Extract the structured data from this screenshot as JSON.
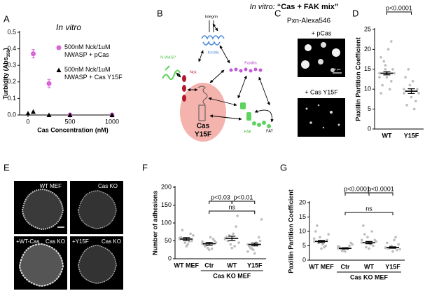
{
  "header": {
    "italic": "In vitro:",
    "bold": "“Cas + FAK mix”"
  },
  "panel_letters": [
    "A",
    "B",
    "C",
    "D",
    "E",
    "F",
    "G"
  ],
  "diagram": {
    "integrin": "Integrin",
    "kindlin": "Kindlin",
    "paxillin": "Paxillin",
    "nwasp": "N-WASP",
    "nck": "Nck",
    "cas": "Cas",
    "cas_mutant": "Y15F",
    "fak": "FAK",
    "fat": "FAT"
  },
  "micrographs": {
    "C": {
      "title": "Pxn-Alexa546",
      "top": "+ pCas",
      "bottom": "+ Cas Y15F",
      "scale": "5 µm"
    },
    "E": {
      "labels": [
        "WT MEF",
        "Cas KO",
        "+WT-Cas",
        "Cas KO",
        "+Y15F",
        "Cas KO"
      ]
    }
  },
  "chart_data": [
    {
      "type": "scatter",
      "title": "In vitro",
      "xlabel": "Cas Concentration (nM)",
      "ylabel": {
        "text": "Turbidity (Abs",
        "sub": "350",
        "end": ")"
      },
      "xlim": [
        -100,
        1000
      ],
      "xticks": [
        0,
        500,
        1000
      ],
      "ylim": [
        0,
        0.5
      ],
      "yticks": [
        {
          "value": 0,
          "label": "0.0"
        },
        0.1,
        0.2,
        0.3,
        0.4,
        0.5
      ],
      "series": [
        {
          "name": "500nM Nck/1uM NWASP + pCas",
          "color": "#d966d6",
          "marker": "circle",
          "x": [
            62.5,
            250,
            500,
            1000
          ],
          "values": [
            0.37,
            0.19,
            0.0,
            0.0
          ],
          "errors": [
            0.025,
            0.025,
            0.005,
            0.005
          ]
        },
        {
          "name": "500nM Nck/1uM NWASP + Cas Y15F",
          "color": "#000000",
          "marker": "triangle",
          "x": [
            0,
            62.5,
            250,
            500,
            1000
          ],
          "values": [
            0.01,
            0.02,
            0.0,
            0.0,
            0.0
          ]
        }
      ]
    },
    {
      "type": "dot",
      "ylabel": "Paxillin Partition Coefficient",
      "categories": [
        "WT",
        "Y15F"
      ],
      "ylim": [
        0,
        25
      ],
      "yticks": [
        0,
        5,
        10,
        15,
        20,
        25
      ],
      "values": [
        [
          14,
          16,
          12,
          18,
          13,
          15,
          11,
          20,
          14,
          17,
          10,
          13,
          15,
          22,
          9,
          14
        ],
        [
          9,
          11,
          7,
          13,
          8,
          10,
          6,
          12,
          9,
          15,
          5,
          10
        ]
      ],
      "means": [
        14,
        9.5
      ],
      "errors": [
        0.4,
        0.6
      ],
      "significance": [
        "p<0.0001"
      ]
    },
    {
      "type": "dot",
      "ylabel": "Number of adhesions",
      "categories": [
        "WT MEF",
        "Ctr",
        "WT",
        "Y15F"
      ],
      "group_label": "Cas KO MEF",
      "ylim": [
        0,
        200
      ],
      "yticks": [
        0,
        50,
        100,
        150,
        200
      ],
      "values": [
        [
          55,
          45,
          70,
          60,
          35,
          50,
          80,
          40,
          65,
          55,
          48,
          58
        ],
        [
          42,
          30,
          55,
          40,
          25,
          50,
          35,
          60,
          45,
          38,
          28,
          48
        ],
        [
          57,
          40,
          90,
          60,
          30,
          120,
          50,
          70,
          45,
          65,
          35,
          55
        ],
        [
          40,
          25,
          60,
          35,
          15,
          50,
          30,
          45,
          110,
          28,
          38,
          20
        ]
      ],
      "means": [
        55,
        42,
        57,
        40
      ],
      "errors": [
        4,
        4,
        6,
        4
      ],
      "significance": [
        "p<0.03",
        "p<0.01",
        "ns"
      ]
    },
    {
      "type": "dot",
      "ylabel": "Paxillin Partition Coefficient",
      "categories": [
        "WT MEF",
        "Ctr",
        "WT",
        "Y15F"
      ],
      "group_label": "Cas KO MEF",
      "ylim": [
        0,
        20
      ],
      "yticks": [
        0,
        5,
        10,
        15,
        20
      ],
      "values": [
        [
          6.5,
          8,
          5,
          10,
          4,
          7,
          12,
          5.5,
          9,
          6,
          4.5,
          7.5
        ],
        [
          4.1,
          3.5,
          5,
          4.5,
          3,
          6,
          3.8,
          4.2,
          5.5,
          3.2,
          4,
          4.8
        ],
        [
          6.1,
          8,
          5,
          12,
          4,
          7,
          9,
          5.5,
          6.5,
          4.5,
          10,
          7
        ],
        [
          4.4,
          5,
          3.5,
          6,
          3,
          5.5,
          4,
          7,
          3.8,
          4.6,
          8,
          4.2
        ]
      ],
      "means": [
        6.5,
        4.1,
        6.1,
        4.4
      ],
      "errors": [
        0.4,
        0.2,
        0.4,
        0.25
      ],
      "significance": [
        "p<0.0001",
        "p<0.0001",
        "ns"
      ]
    }
  ]
}
